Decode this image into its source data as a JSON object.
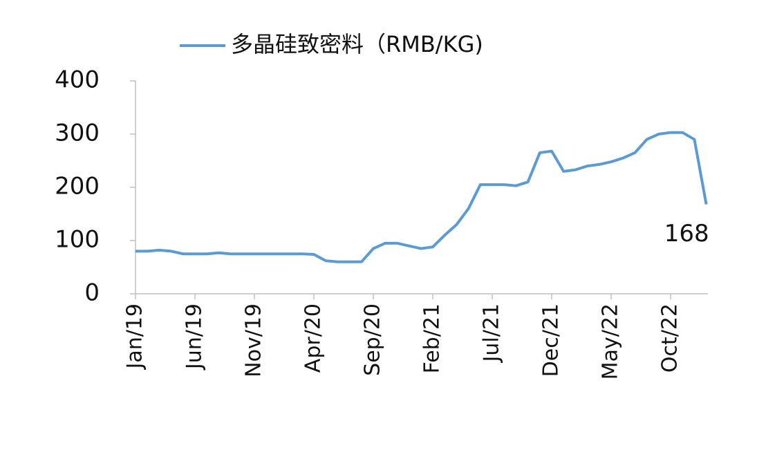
{
  "chart_data": {
    "type": "line",
    "categories": [
      "Jan/19",
      null,
      null,
      null,
      null,
      "Jun/19",
      null,
      null,
      null,
      null,
      "Nov/19",
      null,
      null,
      null,
      null,
      "Apr/20",
      null,
      null,
      null,
      null,
      "Sep/20",
      null,
      null,
      null,
      null,
      "Feb/21",
      null,
      null,
      null,
      null,
      "Jul/21",
      null,
      null,
      null,
      null,
      "Dec/21",
      null,
      null,
      null,
      null,
      "May/22",
      null,
      null,
      null,
      null,
      "Oct/22",
      null,
      null,
      null
    ],
    "series": [
      {
        "name": "多晶硅致密料（RMB/KG)",
        "color": "#5b9bd5",
        "values": [
          80,
          80,
          82,
          80,
          75,
          75,
          75,
          77,
          75,
          75,
          75,
          75,
          75,
          75,
          75,
          74,
          62,
          60,
          60,
          60,
          85,
          95,
          95,
          90,
          85,
          88,
          110,
          130,
          160,
          205,
          205,
          205,
          203,
          210,
          265,
          268,
          230,
          233,
          240,
          243,
          248,
          255,
          265,
          290,
          300,
          303,
          303,
          290,
          168
        ]
      }
    ],
    "ylim": [
      0,
      400
    ],
    "yticks": [
      0,
      100,
      200,
      300,
      400
    ],
    "legend": "top"
  }
}
